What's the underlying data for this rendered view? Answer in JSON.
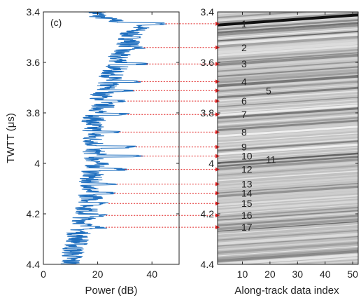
{
  "panel_label": "(c)",
  "chart_data": [
    {
      "type": "line",
      "ylabel": "TWTT (μs)",
      "xlabel": "Power (dB)",
      "xlim": [
        0,
        50
      ],
      "ylim": [
        3.4,
        4.4
      ],
      "y_reversed": true,
      "x_ticks": [
        0,
        20,
        40
      ],
      "y_ticks": [
        3.4,
        3.6,
        3.8,
        4.0,
        4.2,
        4.4
      ],
      "y_tick_labels": [
        "3.4",
        "3.6",
        "3.8",
        "4",
        "4.2",
        "4.4"
      ],
      "x_tick_labels": [
        "0",
        "20",
        "40"
      ],
      "line_color": "#1f6fbf",
      "series": [
        {
          "twtt": [
            3.4,
            3.42,
            3.44,
            3.45,
            3.46,
            3.48,
            3.5,
            3.52,
            3.54,
            3.56,
            3.58,
            3.6,
            3.62,
            3.64,
            3.66,
            3.68,
            3.7,
            3.72,
            3.74,
            3.76,
            3.78,
            3.8,
            3.82,
            3.84,
            3.86,
            3.88,
            3.9,
            3.92,
            3.94,
            3.96,
            3.98,
            4.0,
            4.02,
            4.04,
            4.06,
            4.08,
            4.1,
            4.12,
            4.14,
            4.16,
            4.18,
            4.2,
            4.22,
            4.24,
            4.26,
            4.28,
            4.3,
            4.32,
            4.34,
            4.36,
            4.38,
            4.4
          ],
          "power_db": [
            19,
            21,
            28,
            38,
            36,
            32,
            32,
            32,
            30,
            28,
            27,
            29,
            27,
            25,
            25,
            24,
            23,
            22,
            21,
            22,
            22,
            20,
            19,
            18,
            18,
            19,
            18,
            19,
            18,
            19,
            19,
            20,
            19,
            18,
            17,
            18,
            17,
            17,
            18,
            17,
            16,
            16,
            15,
            15,
            14,
            13,
            13,
            12,
            11,
            11,
            10,
            10
          ]
        }
      ]
    },
    {
      "type": "heatmap",
      "xlabel": "Along-track data index",
      "xlim": [
        1,
        52
      ],
      "ylim": [
        3.4,
        4.4
      ],
      "y_reversed": true,
      "x_ticks": [
        10,
        20,
        30,
        40,
        50
      ],
      "x_tick_labels": [
        "10",
        "20",
        "30",
        "40",
        "50"
      ],
      "y_ticks": [
        3.4,
        3.6,
        3.8,
        4.0,
        4.2,
        4.4
      ],
      "y_tick_labels": [
        "3.4",
        "3.6",
        "3.8",
        "4",
        "4.2",
        "4.4"
      ],
      "colormap": "gray",
      "layers": [
        {
          "label": "1",
          "twtt": 3.447
        },
        {
          "label": "2",
          "twtt": 3.541
        },
        {
          "label": "3",
          "twtt": 3.606
        },
        {
          "label": "4",
          "twtt": 3.676
        },
        {
          "label": "5",
          "twtt": 3.712
        },
        {
          "label": "6",
          "twtt": 3.753
        },
        {
          "label": "7",
          "twtt": 3.806
        },
        {
          "label": "8",
          "twtt": 3.876
        },
        {
          "label": "9",
          "twtt": 3.935
        },
        {
          "label": "10",
          "twtt": 3.971
        },
        {
          "label": "11",
          "twtt": 3.985
        },
        {
          "label": "12",
          "twtt": 4.024
        },
        {
          "label": "13",
          "twtt": 4.082
        },
        {
          "label": "14",
          "twtt": 4.118
        },
        {
          "label": "15",
          "twtt": 4.159
        },
        {
          "label": "16",
          "twtt": 4.206
        },
        {
          "label": "17",
          "twtt": 4.253
        }
      ],
      "arrows": {
        "color": "#e02020",
        "twtt": [
          3.447,
          3.541,
          3.606,
          3.676,
          3.712,
          3.753,
          3.806,
          3.876,
          3.935,
          3.971,
          4.024,
          4.082,
          4.118,
          4.159,
          4.206,
          4.253
        ],
        "from_power_db": [
          45,
          37,
          38,
          35,
          33,
          31,
          31,
          28,
          34,
          36,
          30,
          27,
          26,
          24,
          23,
          23
        ]
      }
    }
  ]
}
